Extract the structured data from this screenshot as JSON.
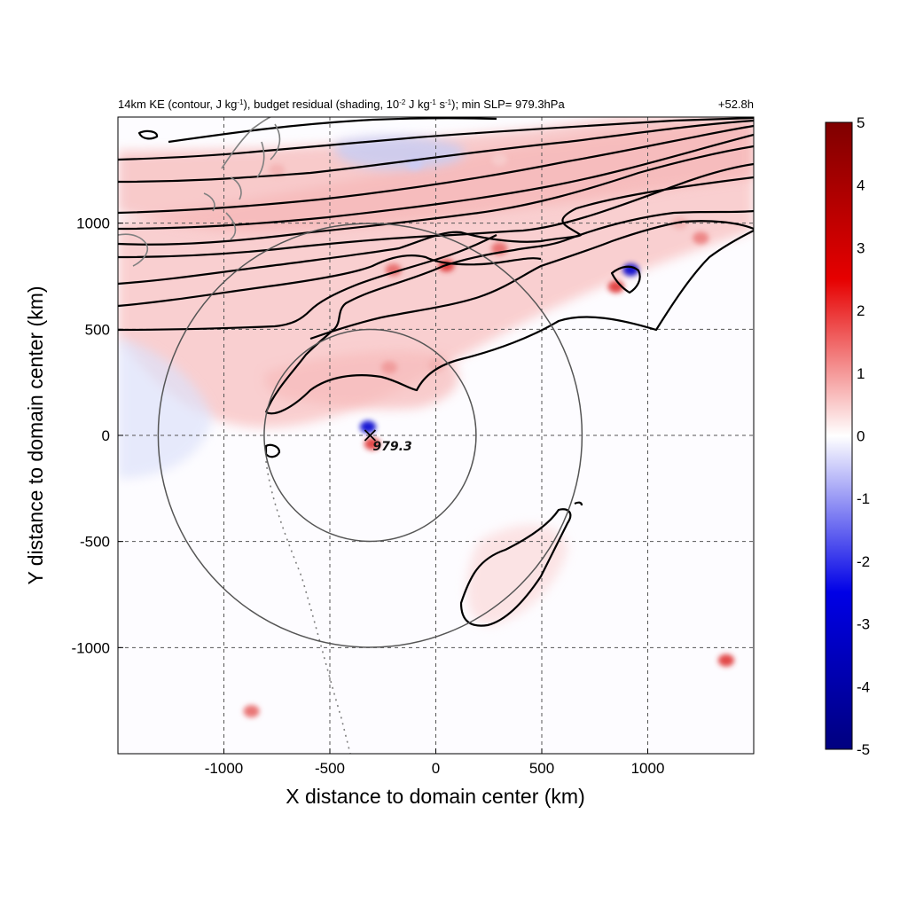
{
  "chart_data": {
    "type": "heatmap",
    "title": {
      "main_parts": [
        "14km KE (contour, J kg",
        "-1",
        "), budget residual (shading, 10",
        "-2",
        " J kg",
        "-1",
        " s",
        "-1",
        "); min SLP= 979.3hPa"
      ],
      "time": "+52.8h"
    },
    "xlabel": "X distance to domain center (km)",
    "ylabel": "Y distance to domain center (km)",
    "xlim": [
      -1500,
      1500
    ],
    "ylim": [
      -1500,
      1500
    ],
    "xticks": [
      "-1000",
      "-500",
      "0",
      "500",
      "1000"
    ],
    "yticks": [
      "-1000",
      "-500",
      "0",
      "500",
      "1000"
    ],
    "grid": true,
    "colorbar": {
      "range": [
        -5,
        5
      ],
      "labels": [
        "5",
        "4",
        "3",
        "2",
        "1",
        "0",
        "-1",
        "-2",
        "-3",
        "-4",
        "-5"
      ],
      "colors": [
        "#7f0000",
        "#e60000",
        "#ffffff",
        "#0000e6",
        "#00007f"
      ]
    },
    "storm_center": {
      "x": -310,
      "y": 0,
      "label": "979.3",
      "marker": "x-icon"
    },
    "range_circles_km": [
      500,
      1000
    ],
    "shading_features": [
      {
        "x": 300,
        "y": 880,
        "value": 3
      },
      {
        "x": 50,
        "y": 800,
        "value": 4
      },
      {
        "x": -200,
        "y": 780,
        "value": 3
      },
      {
        "x": 850,
        "y": 700,
        "value": 4
      },
      {
        "x": 920,
        "y": 780,
        "value": -5
      },
      {
        "x": 1250,
        "y": 930,
        "value": 2.5
      },
      {
        "x": -220,
        "y": 320,
        "value": 2
      },
      {
        "x": 0,
        "y": 330,
        "value": 1.5
      },
      {
        "x": -300,
        "y": -40,
        "value": 4
      },
      {
        "x": -320,
        "y": 40,
        "value": -5
      },
      {
        "x": -870,
        "y": -1300,
        "value": 3
      },
      {
        "x": 1370,
        "y": -1060,
        "value": 4
      },
      {
        "x": -750,
        "y": 1250,
        "value": 1.5
      },
      {
        "x": 300,
        "y": 1300,
        "value": 1
      },
      {
        "x": -100,
        "y": 1280,
        "value": -1
      },
      {
        "x": 1150,
        "y": 1000,
        "value": 1.5
      }
    ]
  }
}
